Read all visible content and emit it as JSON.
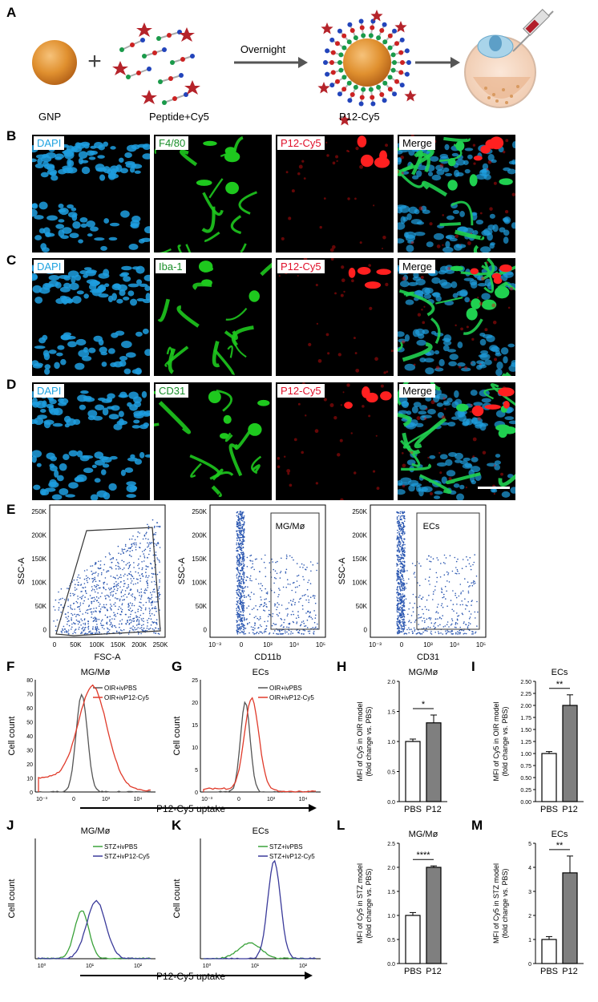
{
  "panels": {
    "A": "A",
    "B": "B",
    "C": "C",
    "D": "D",
    "E": "E",
    "F": "F",
    "G": "G",
    "H": "H",
    "I": "I",
    "J": "J",
    "K": "K",
    "L": "L",
    "M": "M"
  },
  "schematic": {
    "gnp_label": "GNP",
    "peptide_label": "Peptide+Cy5",
    "arrow_label": "Overnight",
    "product_label": "P12-Cy5",
    "plus": "+"
  },
  "micro_rows": [
    {
      "row": "B",
      "tags": [
        "DAPI",
        "F4/80",
        "P12-Cy5",
        "Merge"
      ]
    },
    {
      "row": "C",
      "tags": [
        "DAPI",
        "Iba-1",
        "P12-Cy5",
        "Merge"
      ]
    },
    {
      "row": "D",
      "tags": [
        "DAPI",
        "CD31",
        "P12-Cy5",
        "Merge"
      ]
    }
  ],
  "colors": {
    "dapi": "#1f9fe0",
    "green": "#1ec81e",
    "red": "#e01010",
    "cyan_tag": "#1fa3e0",
    "green_tag": "#1a8f2a",
    "red_tag": "#e0102a",
    "pbs_gray": "#555555",
    "oir_red": "#e03a2a",
    "stz_green": "#3aa23a",
    "stz_blue": "#3a3a9a",
    "bar_gray": "#7f7f7f",
    "flow_blue": "#2a56b0"
  },
  "flow": {
    "ylabel": "SSC-A",
    "yticks": [
      "250K",
      "200K",
      "150K",
      "100K",
      "50K",
      "0"
    ],
    "p1": {
      "xlabel": "FSC-A",
      "xticks": [
        "0",
        "50K",
        "100K",
        "150K",
        "200K",
        "250K"
      ]
    },
    "p2": {
      "xlabel": "CD11b",
      "gate": "MG/Mø",
      "xticks": [
        "10⁻³",
        "0",
        "10³",
        "10⁴",
        "10⁵"
      ]
    },
    "p3": {
      "xlabel": "CD31",
      "gate": "ECs",
      "xticks": [
        "10⁻³",
        "0",
        "10³",
        "10⁴",
        "10⁵"
      ]
    }
  },
  "histograms": {
    "F": {
      "title": "MG/Mø",
      "legend": [
        "OIR+ivPBS",
        "OIR+ivP12-Cy5"
      ],
      "ylabel": "Cell count",
      "yticks": [
        "0",
        "10",
        "20",
        "30",
        "40",
        "50",
        "60",
        "70",
        "80"
      ],
      "xticks": [
        "10⁻³",
        "0",
        "10³",
        "10⁴"
      ]
    },
    "G": {
      "title": "ECs",
      "legend": [
        "OIR+ivPBS",
        "OIR+ivP12-Cy5"
      ],
      "ylabel": "Cell count",
      "yticks": [
        "0",
        "5",
        "10",
        "15",
        "20",
        "25"
      ],
      "xticks": [
        "10⁻³",
        "0",
        "10³",
        "10⁴"
      ]
    },
    "FG_xlabel": "P12-Cy5 uptake",
    "J": {
      "title": "MG/Mø",
      "legend": [
        "STZ+ivPBS",
        "STZ+ivP12-Cy5"
      ],
      "ylabel": "Cell count",
      "xticks": [
        "10⁰",
        "10¹",
        "10²"
      ]
    },
    "K": {
      "title": "ECs",
      "legend": [
        "STZ+ivPBS",
        "STZ+ivP12-Cy5"
      ],
      "ylabel": "Cell count",
      "xticks": [
        "10⁰",
        "10¹",
        "10²"
      ]
    },
    "JK_xlabel": "P12-Cy5 uptake"
  },
  "chart_data": [
    {
      "panel": "H",
      "type": "bar",
      "title": "MG/Mø",
      "categories": [
        "PBS",
        "P12"
      ],
      "values": [
        1.0,
        1.31
      ],
      "errors": [
        0.04,
        0.13
      ],
      "ylim": [
        0,
        2.0
      ],
      "yticks": [
        "0.0",
        "0.5",
        "1.0",
        "1.5",
        "2.0"
      ],
      "ylabel": "MFI of Cy5 in OIR model\n(fold change vs. PBS)",
      "significance": "*"
    },
    {
      "panel": "I",
      "type": "bar",
      "title": "ECs",
      "categories": [
        "PBS",
        "P12"
      ],
      "values": [
        1.0,
        2.0
      ],
      "errors": [
        0.04,
        0.22
      ],
      "ylim": [
        0,
        2.5
      ],
      "yticks": [
        "0.00",
        "0.25",
        "0.50",
        "0.75",
        "1.00",
        "1.25",
        "1.50",
        "1.75",
        "2.00",
        "2.25",
        "2.50"
      ],
      "ylabel": "MFI of Cy5 in OIR model\n(fold change vs. PBS)",
      "significance": "**"
    },
    {
      "panel": "L",
      "type": "bar",
      "title": "MG/Mø",
      "categories": [
        "PBS",
        "P12"
      ],
      "values": [
        1.0,
        2.0
      ],
      "errors": [
        0.06,
        0.03
      ],
      "ylim": [
        0,
        2.5
      ],
      "yticks": [
        "0.0",
        "0.5",
        "1.0",
        "1.5",
        "2.0",
        "2.5"
      ],
      "ylabel": "MFI of Cy5 in STZ model\n(fold change vs. PBS)",
      "significance": "****"
    },
    {
      "panel": "M",
      "type": "bar",
      "title": "ECs",
      "categories": [
        "PBS",
        "P12"
      ],
      "values": [
        1.0,
        3.77
      ],
      "errors": [
        0.12,
        0.7
      ],
      "ylim": [
        0,
        5
      ],
      "yticks": [
        "0",
        "1",
        "2",
        "3",
        "4",
        "5"
      ],
      "ylabel": "MFI of Cy5 in STZ model\n(fold change vs. PBS)",
      "significance": "**"
    }
  ]
}
